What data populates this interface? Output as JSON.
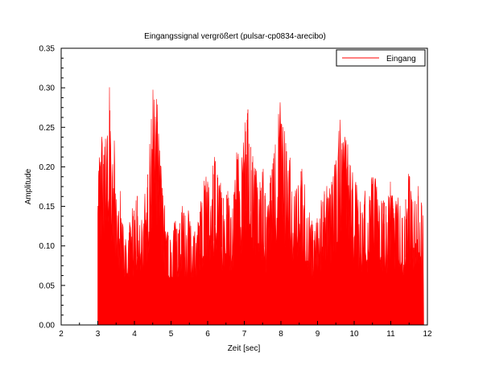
{
  "chart_data": {
    "type": "area",
    "title": "Eingangssignal vergrößert (pulsar-cp0834-arecibo)",
    "xlabel": "Zeit [sec]",
    "ylabel": "Amplitude",
    "xlim": [
      2,
      12
    ],
    "ylim": [
      0,
      0.35
    ],
    "x_ticks": [
      "2",
      "3",
      "4",
      "5",
      "6",
      "7",
      "8",
      "9",
      "10",
      "11",
      "12"
    ],
    "y_ticks": [
      "0.00",
      "0.05",
      "0.10",
      "0.15",
      "0.20",
      "0.25",
      "0.30",
      "0.35"
    ],
    "grid": false,
    "legend_position": "top-right",
    "series": [
      {
        "name": "Eingang",
        "color": "#ff0000",
        "x_start": 3.0,
        "x_end": 11.9,
        "points": [
          [
            3.0,
            0.16
          ],
          [
            3.05,
            0.2
          ],
          [
            3.1,
            0.22
          ],
          [
            3.15,
            0.19
          ],
          [
            3.2,
            0.24
          ],
          [
            3.25,
            0.21
          ],
          [
            3.3,
            0.3
          ],
          [
            3.35,
            0.23
          ],
          [
            3.4,
            0.18
          ],
          [
            3.45,
            0.22
          ],
          [
            3.5,
            0.16
          ],
          [
            3.55,
            0.14
          ],
          [
            3.6,
            0.16
          ],
          [
            3.65,
            0.12
          ],
          [
            3.7,
            0.11
          ],
          [
            3.8,
            0.1
          ],
          [
            3.9,
            0.12
          ],
          [
            4.0,
            0.14
          ],
          [
            4.1,
            0.16
          ],
          [
            4.2,
            0.13
          ],
          [
            4.3,
            0.15
          ],
          [
            4.4,
            0.2
          ],
          [
            4.5,
            0.26
          ],
          [
            4.55,
            0.31
          ],
          [
            4.6,
            0.25
          ],
          [
            4.65,
            0.24
          ],
          [
            4.7,
            0.2
          ],
          [
            4.75,
            0.17
          ],
          [
            4.8,
            0.14
          ],
          [
            4.9,
            0.11
          ],
          [
            5.0,
            0.1
          ],
          [
            5.1,
            0.12
          ],
          [
            5.2,
            0.11
          ],
          [
            5.3,
            0.14
          ],
          [
            5.4,
            0.12
          ],
          [
            5.5,
            0.13
          ],
          [
            5.6,
            0.11
          ],
          [
            5.7,
            0.1
          ],
          [
            5.8,
            0.14
          ],
          [
            5.9,
            0.16
          ],
          [
            6.0,
            0.17
          ],
          [
            6.1,
            0.16
          ],
          [
            6.2,
            0.2
          ],
          [
            6.3,
            0.17
          ],
          [
            6.4,
            0.15
          ],
          [
            6.5,
            0.16
          ],
          [
            6.6,
            0.14
          ],
          [
            6.7,
            0.15
          ],
          [
            6.8,
            0.2
          ],
          [
            6.9,
            0.18
          ],
          [
            7.0,
            0.22
          ],
          [
            7.1,
            0.26
          ],
          [
            7.15,
            0.23
          ],
          [
            7.2,
            0.2
          ],
          [
            7.3,
            0.18
          ],
          [
            7.4,
            0.15
          ],
          [
            7.5,
            0.18
          ],
          [
            7.6,
            0.14
          ],
          [
            7.7,
            0.17
          ],
          [
            7.8,
            0.2
          ],
          [
            7.9,
            0.23
          ],
          [
            7.95,
            0.26
          ],
          [
            8.0,
            0.24
          ],
          [
            8.1,
            0.22
          ],
          [
            8.2,
            0.2
          ],
          [
            8.3,
            0.17
          ],
          [
            8.4,
            0.16
          ],
          [
            8.5,
            0.19
          ],
          [
            8.6,
            0.18
          ],
          [
            8.7,
            0.14
          ],
          [
            8.8,
            0.12
          ],
          [
            8.9,
            0.11
          ],
          [
            9.0,
            0.12
          ],
          [
            9.1,
            0.14
          ],
          [
            9.2,
            0.16
          ],
          [
            9.3,
            0.15
          ],
          [
            9.4,
            0.17
          ],
          [
            9.5,
            0.19
          ],
          [
            9.6,
            0.24
          ],
          [
            9.7,
            0.21
          ],
          [
            9.8,
            0.22
          ],
          [
            9.9,
            0.18
          ],
          [
            10.0,
            0.17
          ],
          [
            10.1,
            0.15
          ],
          [
            10.2,
            0.13
          ],
          [
            10.3,
            0.15
          ],
          [
            10.4,
            0.14
          ],
          [
            10.5,
            0.17
          ],
          [
            10.6,
            0.16
          ],
          [
            10.7,
            0.14
          ],
          [
            10.8,
            0.15
          ],
          [
            10.9,
            0.14
          ],
          [
            11.0,
            0.16
          ],
          [
            11.1,
            0.13
          ],
          [
            11.2,
            0.15
          ],
          [
            11.3,
            0.12
          ],
          [
            11.4,
            0.15
          ],
          [
            11.5,
            0.17
          ],
          [
            11.6,
            0.14
          ],
          [
            11.7,
            0.16
          ],
          [
            11.8,
            0.15
          ],
          [
            11.9,
            0.12
          ]
        ]
      }
    ]
  }
}
